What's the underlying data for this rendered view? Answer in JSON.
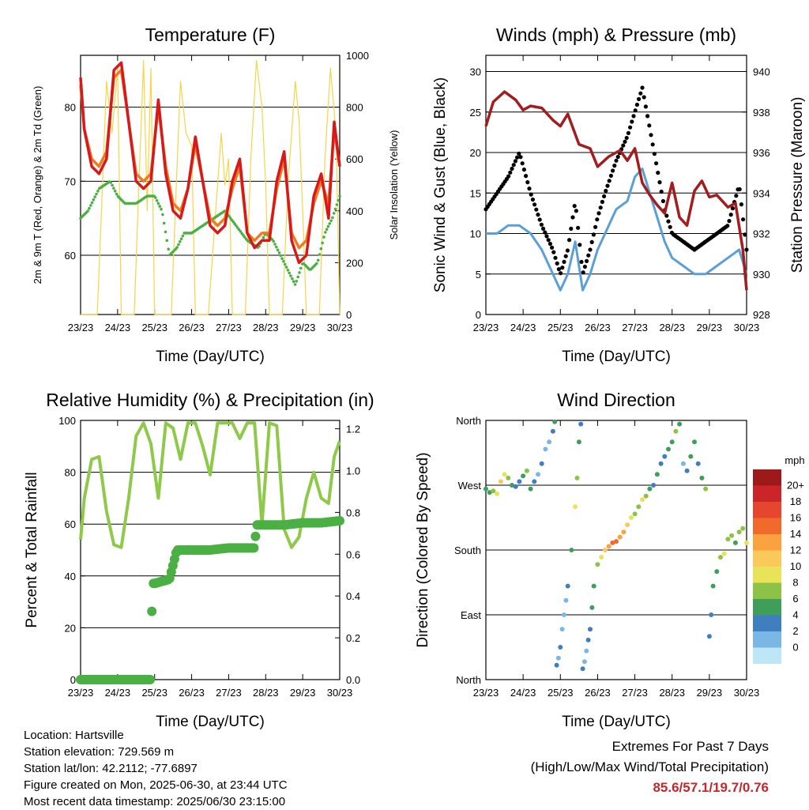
{
  "time_ticks": [
    "23/23",
    "24/23",
    "25/23",
    "26/23",
    "27/23",
    "28/23",
    "29/23",
    "30/23"
  ],
  "colors": {
    "temp2m": "#d7191c",
    "temp9m": "#f07b1f",
    "dewpoint": "#4ab043",
    "solar": "#f5d547",
    "wind": "#5aa0d6",
    "gust": "#000000",
    "pressure": "#a31c1e",
    "rh": "#8fc94a",
    "rain": "#4ab043"
  },
  "chart_data": [
    {
      "type": "line",
      "title": "Temperature (F)",
      "xlabel": "Time (Day/UTC)",
      "ylabel": "2m & 9m T (Red, Orange) & 2m Td (Green)",
      "ylabel_right": "Solar Insolation (Yellow)",
      "x_ticks": [
        "23/23",
        "24/23",
        "25/23",
        "26/23",
        "27/23",
        "28/23",
        "29/23",
        "30/23"
      ],
      "ylim": [
        52,
        87
      ],
      "yticks": [
        60,
        70,
        80
      ],
      "ylim_right": [
        0,
        1000
      ],
      "yticks_right": [
        0,
        200,
        400,
        600,
        800,
        1000
      ],
      "series": [
        {
          "key": "temp2m",
          "axis": "left",
          "x": [
            0,
            0.1,
            0.3,
            0.5,
            0.7,
            0.9,
            1.1,
            1.3,
            1.5,
            1.7,
            1.9,
            2.1,
            2.3,
            2.5,
            2.7,
            2.9,
            3.1,
            3.3,
            3.5,
            3.7,
            3.9,
            4.1,
            4.3,
            4.5,
            4.7,
            4.9,
            5.1,
            5.3,
            5.5,
            5.7,
            5.9,
            6.1,
            6.3,
            6.5,
            6.7,
            6.85,
            7
          ],
          "y": [
            84,
            77,
            72,
            71,
            73,
            85,
            86,
            78,
            70,
            69,
            70,
            81,
            71,
            66,
            65,
            69,
            76,
            70,
            64,
            63,
            64,
            70,
            73,
            63,
            61,
            62,
            62,
            70,
            74,
            62,
            59,
            60,
            68,
            71,
            65,
            78,
            72
          ]
        },
        {
          "key": "temp9m",
          "axis": "left",
          "x": [
            0,
            0.1,
            0.3,
            0.5,
            0.7,
            0.9,
            1.1,
            1.3,
            1.5,
            1.7,
            1.9,
            2.1,
            2.3,
            2.5,
            2.7,
            2.9,
            3.1,
            3.3,
            3.5,
            3.7,
            3.9,
            4.1,
            4.3,
            4.5,
            4.7,
            4.9,
            5.1,
            5.3,
            5.5,
            5.7,
            5.9,
            6.1,
            6.3,
            6.5,
            6.7,
            6.85,
            7
          ],
          "y": [
            83,
            77,
            73,
            72,
            74,
            84,
            85,
            78,
            71,
            70,
            71,
            80,
            72,
            67,
            66,
            69,
            75,
            70,
            65,
            64,
            65,
            69,
            72,
            63,
            62,
            63,
            63,
            69,
            73,
            63,
            61,
            62,
            67,
            70,
            67,
            77,
            72
          ]
        },
        {
          "key": "dewpoint",
          "axis": "left",
          "x": [
            0,
            0.2,
            0.5,
            0.8,
            1.0,
            1.2,
            1.5,
            1.8,
            2.0,
            2.2,
            2.4,
            2.6,
            2.8,
            3.0,
            3.3,
            3.6,
            3.9,
            4.2,
            4.5,
            4.8,
            5.0,
            5.2,
            5.4,
            5.6,
            5.8,
            6.0,
            6.2,
            6.4,
            6.6,
            6.8,
            7
          ],
          "y": [
            65,
            66,
            69,
            70,
            68,
            67,
            67,
            68,
            68,
            66,
            60,
            61,
            63,
            63,
            64,
            65,
            66,
            64,
            62,
            61,
            63,
            62,
            60,
            58,
            56,
            59,
            58,
            59,
            63,
            65,
            68
          ]
        },
        {
          "key": "solar",
          "axis": "right",
          "x": [
            0,
            0.45,
            0.55,
            0.7,
            0.85,
            1.0,
            1.1,
            1.45,
            1.6,
            1.7,
            1.8,
            1.9,
            2.0,
            2.15,
            2.45,
            2.6,
            2.7,
            2.85,
            3.0,
            3.1,
            3.45,
            3.6,
            3.8,
            3.9,
            4.0,
            4.1,
            4.45,
            4.6,
            4.75,
            4.9,
            5.0,
            5.1,
            5.45,
            5.6,
            5.8,
            5.9,
            6.0,
            6.1,
            6.45,
            6.6,
            6.75,
            6.9,
            7.0
          ],
          "y": [
            0,
            0,
            350,
            900,
            700,
            950,
            0,
            0,
            600,
            980,
            400,
            950,
            0,
            0,
            0,
            550,
            900,
            700,
            650,
            0,
            0,
            300,
            700,
            500,
            600,
            0,
            0,
            600,
            980,
            800,
            500,
            0,
            0,
            500,
            900,
            750,
            400,
            0,
            0,
            600,
            950,
            700,
            0
          ]
        }
      ]
    },
    {
      "type": "scatter",
      "title": "Winds (mph) & Pressure (mb)",
      "xlabel": "Time (Day/UTC)",
      "ylabel": "Sonic Wind & Gust (Blue, Black)",
      "ylabel_right": "Station Pressure (Maroon)",
      "x_ticks": [
        "23/23",
        "24/23",
        "25/23",
        "26/23",
        "27/23",
        "28/23",
        "29/23",
        "30/23"
      ],
      "ylim": [
        0,
        32
      ],
      "yticks": [
        0,
        5,
        10,
        15,
        20,
        25,
        30
      ],
      "ylim_right": [
        928,
        940.8
      ],
      "yticks_right": [
        928,
        930,
        932,
        934,
        936,
        938,
        940
      ],
      "series": [
        {
          "key": "wind",
          "axis": "left",
          "x": [
            0,
            0.3,
            0.6,
            0.9,
            1.2,
            1.5,
            1.8,
            2.0,
            2.2,
            2.4,
            2.6,
            2.8,
            3.0,
            3.2,
            3.5,
            3.8,
            4.0,
            4.2,
            4.4,
            4.6,
            4.8,
            5.0,
            5.3,
            5.6,
            5.9,
            6.2,
            6.5,
            6.8,
            7
          ],
          "y": [
            10,
            10,
            11,
            11,
            10,
            8,
            5,
            3,
            5,
            9,
            3,
            5,
            8,
            10,
            13,
            14,
            17,
            18,
            15,
            12,
            9,
            7,
            6,
            5,
            5,
            6,
            7,
            8,
            5
          ]
        },
        {
          "key": "gust",
          "axis": "left",
          "x": [
            0,
            0.3,
            0.6,
            0.9,
            1.2,
            1.5,
            1.8,
            2.0,
            2.2,
            2.4,
            2.6,
            2.8,
            3.0,
            3.2,
            3.5,
            3.8,
            4.0,
            4.2,
            4.4,
            4.6,
            4.8,
            5.0,
            5.3,
            5.6,
            5.9,
            6.2,
            6.5,
            6.8,
            7
          ],
          "y": [
            13,
            15,
            17,
            20,
            15,
            11,
            8,
            5,
            8,
            14,
            5,
            8,
            12,
            15,
            19,
            22,
            25,
            28,
            23,
            18,
            13,
            10,
            9,
            8,
            9,
            10,
            11,
            16,
            8
          ]
        },
        {
          "key": "pressure",
          "axis": "right",
          "x": [
            0,
            0.2,
            0.5,
            0.8,
            1.0,
            1.2,
            1.5,
            1.8,
            2.0,
            2.2,
            2.5,
            2.8,
            3.0,
            3.3,
            3.6,
            3.8,
            4.0,
            4.2,
            4.4,
            4.6,
            4.8,
            5.0,
            5.2,
            5.4,
            5.6,
            5.8,
            6.0,
            6.2,
            6.5,
            6.7,
            6.9,
            7
          ],
          "y": [
            937.3,
            938.5,
            939.0,
            938.6,
            938.1,
            938.3,
            938.2,
            937.6,
            937.3,
            937.9,
            936.4,
            936.2,
            935.3,
            935.8,
            936.1,
            935.6,
            936.2,
            934.5,
            933.9,
            933.4,
            933.0,
            934.5,
            932.8,
            932.4,
            934.1,
            934.6,
            933.8,
            933.9,
            933.3,
            933.5,
            931.2,
            929.2
          ]
        }
      ]
    },
    {
      "type": "line",
      "title": "Relative Humidity (%) & Precipitation (in)",
      "xlabel": "Time (Day/UTC)",
      "ylabel": "Percent & Total Rainfall",
      "x_ticks": [
        "23/23",
        "24/23",
        "25/23",
        "26/23",
        "27/23",
        "28/23",
        "29/23",
        "30/23"
      ],
      "ylim": [
        0,
        100
      ],
      "yticks": [
        0,
        20,
        40,
        60,
        80,
        100
      ],
      "ylim_right": [
        0,
        1.24
      ],
      "yticks_right": [
        "0.0",
        "0.2",
        "0.4",
        "0.6",
        "0.8",
        "1.0",
        "1.2"
      ],
      "series": [
        {
          "key": "rh",
          "axis": "left",
          "x": [
            0,
            0.1,
            0.3,
            0.5,
            0.7,
            0.9,
            1.1,
            1.3,
            1.5,
            1.7,
            1.9,
            2.1,
            2.3,
            2.5,
            2.7,
            2.9,
            3.1,
            3.3,
            3.5,
            3.7,
            3.9,
            4.1,
            4.3,
            4.5,
            4.7,
            4.9,
            5.1,
            5.3,
            5.5,
            5.7,
            5.9,
            6.1,
            6.3,
            6.5,
            6.7,
            6.85,
            7
          ],
          "y": [
            54,
            70,
            85,
            86,
            65,
            52,
            51,
            70,
            94,
            99,
            91,
            70,
            99,
            97,
            85,
            99,
            99,
            90,
            79,
            99,
            99,
            99,
            93,
            99,
            99,
            60,
            99,
            98,
            58,
            51,
            55,
            70,
            80,
            70,
            68,
            86,
            92
          ]
        },
        {
          "key": "rain",
          "axis": "right",
          "x": [
            0,
            0.5,
            1.0,
            1.5,
            1.9,
            1.92,
            1.95,
            2.0,
            2.2,
            2.4,
            2.5,
            2.6,
            3.0,
            3.5,
            4.0,
            4.5,
            4.7,
            4.75,
            5.0,
            5.5,
            6.0,
            6.5,
            7
          ],
          "y": [
            0,
            0,
            0,
            0,
            0,
            0.3,
            0.46,
            0.46,
            0.47,
            0.48,
            0.55,
            0.62,
            0.62,
            0.62,
            0.63,
            0.63,
            0.63,
            0.74,
            0.74,
            0.74,
            0.75,
            0.75,
            0.76
          ]
        }
      ]
    },
    {
      "type": "scatter",
      "title": "Wind Direction",
      "xlabel": "Time (Day/UTC)",
      "ylabel": "Direction (Colored By Speed)",
      "x_ticks": [
        "23/23",
        "24/23",
        "25/23",
        "26/23",
        "27/23",
        "28/23",
        "29/23",
        "30/23"
      ],
      "ylim": [
        0,
        360
      ],
      "yticks": [
        "North",
        "East",
        "South",
        "West",
        "North"
      ],
      "colorbar": {
        "title": "mph",
        "labels": [
          "20+",
          "18",
          "16",
          "14",
          "12",
          "10",
          "8",
          "6",
          "4",
          "2",
          "0"
        ],
        "colors": [
          "#9e1a1a",
          "#cc2529",
          "#e6452f",
          "#f06a2b",
          "#f9a23f",
          "#fbc85b",
          "#e9e35a",
          "#8cc346",
          "#3e9e5a",
          "#3f7fc1",
          "#7bb7e5",
          "#bde6f6"
        ]
      },
      "points": {
        "x": [
          0,
          0.1,
          0.2,
          0.3,
          0.4,
          0.5,
          0.6,
          0.7,
          0.8,
          0.9,
          1.0,
          1.1,
          1.2,
          1.3,
          1.4,
          1.5,
          1.6,
          1.7,
          1.8,
          1.85,
          1.9,
          1.95,
          2.0,
          2.05,
          2.1,
          2.15,
          2.2,
          2.3,
          2.4,
          2.45,
          2.5,
          2.55,
          2.6,
          2.65,
          2.7,
          2.75,
          2.8,
          2.85,
          2.9,
          3.0,
          3.1,
          3.2,
          3.3,
          3.4,
          3.5,
          3.6,
          3.7,
          3.8,
          3.9,
          4.0,
          4.1,
          4.2,
          4.3,
          4.4,
          4.5,
          4.6,
          4.7,
          4.8,
          4.9,
          5.0,
          5.1,
          5.2,
          5.3,
          5.4,
          5.5,
          5.6,
          5.7,
          5.8,
          5.9,
          6.0,
          6.05,
          6.1,
          6.2,
          6.3,
          6.4,
          6.5,
          6.6,
          6.7,
          6.8,
          6.9,
          7.0
        ],
        "y": [
          265,
          260,
          262,
          258,
          275,
          285,
          280,
          270,
          268,
          275,
          283,
          290,
          265,
          275,
          285,
          300,
          320,
          330,
          345,
          358,
          20,
          30,
          45,
          70,
          90,
          110,
          130,
          180,
          240,
          280,
          330,
          355,
          15,
          25,
          40,
          55,
          70,
          100,
          130,
          160,
          170,
          180,
          185,
          190,
          192,
          198,
          205,
          215,
          225,
          230,
          240,
          250,
          255,
          265,
          270,
          285,
          300,
          310,
          320,
          330,
          345,
          355,
          300,
          290,
          310,
          330,
          300,
          280,
          265,
          60,
          90,
          130,
          150,
          170,
          175,
          195,
          200,
          190,
          205,
          210,
          190
        ],
        "speed": [
          6,
          7,
          8,
          10,
          12,
          11,
          9,
          6,
          5,
          4,
          7,
          9,
          6,
          5,
          3,
          4,
          3,
          2,
          4,
          6,
          5,
          3,
          4,
          3,
          2,
          3,
          5,
          6,
          10,
          8,
          6,
          4,
          4,
          3,
          3,
          4,
          5,
          6,
          7,
          9,
          11,
          13,
          15,
          16,
          17,
          15,
          14,
          12,
          11,
          9,
          8,
          10,
          9,
          7,
          5,
          6,
          5,
          4,
          6,
          7,
          8,
          6,
          3,
          5,
          7,
          6,
          4,
          6,
          8,
          4,
          5,
          6,
          7,
          8,
          10,
          9,
          8,
          7,
          9,
          8,
          10
        ]
      }
    }
  ],
  "info": {
    "location": "Location: Hartsville",
    "elevation": "Station elevation: 729.569 m",
    "latlon": "Station lat/lon: 42.2112; -77.6897",
    "created": "Figure created on Mon, 2025-06-30, at 23:44 UTC",
    "recent": "Most recent data timestamp: 2025/06/30 23:15:00"
  },
  "extremes": {
    "title": "Extremes For Past 7 Days",
    "subtitle": "(High/Low/Max Wind/Total Precipitation)",
    "values": "85.6/57.1/19.7/0.76"
  }
}
